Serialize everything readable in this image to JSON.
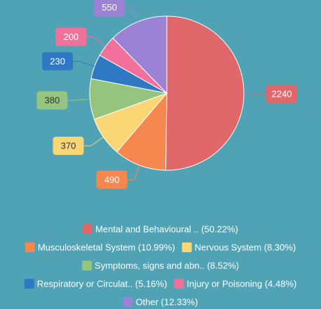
{
  "chart_data": {
    "type": "pie",
    "categories": [
      "Mental and Behavioural .. (50.22%)",
      "Musculoskeletal System (10.99%)",
      "Nervous System (8.30%)",
      "Symptoms, signs and abn.. (8.52%)",
      "Respiratory or Circulat.. (5.16%)",
      "Injury or Poisoning (4.48%)",
      "Other (12.33%)"
    ],
    "values": [
      2240,
      490,
      370,
      380,
      230,
      200,
      550
    ],
    "colors": [
      "#e0686a",
      "#f6874e",
      "#fad774",
      "#95c47e",
      "#2f78c4",
      "#f2719b",
      "#9b82d4"
    ],
    "legend": "bottom"
  }
}
